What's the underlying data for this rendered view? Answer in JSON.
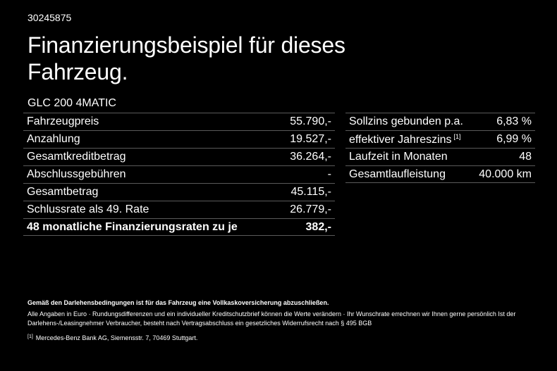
{
  "offer_id": "30245875",
  "headline": "Finanzierungsbeispiel für dieses Fahrzeug.",
  "model": "GLC 200 4MATIC",
  "left_table": [
    {
      "label": "Fahrzeugpreis",
      "value": "55.790,-"
    },
    {
      "label": "Anzahlung",
      "value": "19.527,-"
    },
    {
      "label": "Gesamtkreditbetrag",
      "value": "36.264,-"
    },
    {
      "label": "Abschlussgebühren",
      "value": "-"
    },
    {
      "label": "Gesamtbetrag",
      "value": "45.115,-"
    },
    {
      "label": "Schlussrate als 49. Rate",
      "value": "26.779,-"
    },
    {
      "label": "48 monatliche Finanzierungsraten zu je",
      "value": "382,-"
    }
  ],
  "right_table": [
    {
      "label": "Sollzins gebunden p.a.",
      "value": "6,83 %"
    },
    {
      "label": "effektiver Jahreszins",
      "footnote": "[1]",
      "value": "6,99 %"
    },
    {
      "label": "Laufzeit in Monaten",
      "value": "48"
    },
    {
      "label": "Gesamtlaufleistung",
      "value": "40.000 km"
    }
  ],
  "notes": {
    "insurance": "Gemäß den Darlehensbedingungen ist für das Fahrzeug eine Vollkaskoversicherung abzuschließen.",
    "disclaimer": "Alle Angaben in Euro · Rundungsdifferenzen und ein individueller Kreditschutzbrief können die Werte verändern · Ihr Wunschrate errechnen wir Ihnen gerne persönlich Ist der Darlehens-/Leasingnehmer Verbraucher, besteht nach Vertragsabschluss ein gesetzliches Widerrufsrecht nach § 495 BGB",
    "footnote_marker": "[1]",
    "footnote": "Mercedes-Benz Bank AG, Siemensstr. 7, 70469 Stuttgart."
  }
}
